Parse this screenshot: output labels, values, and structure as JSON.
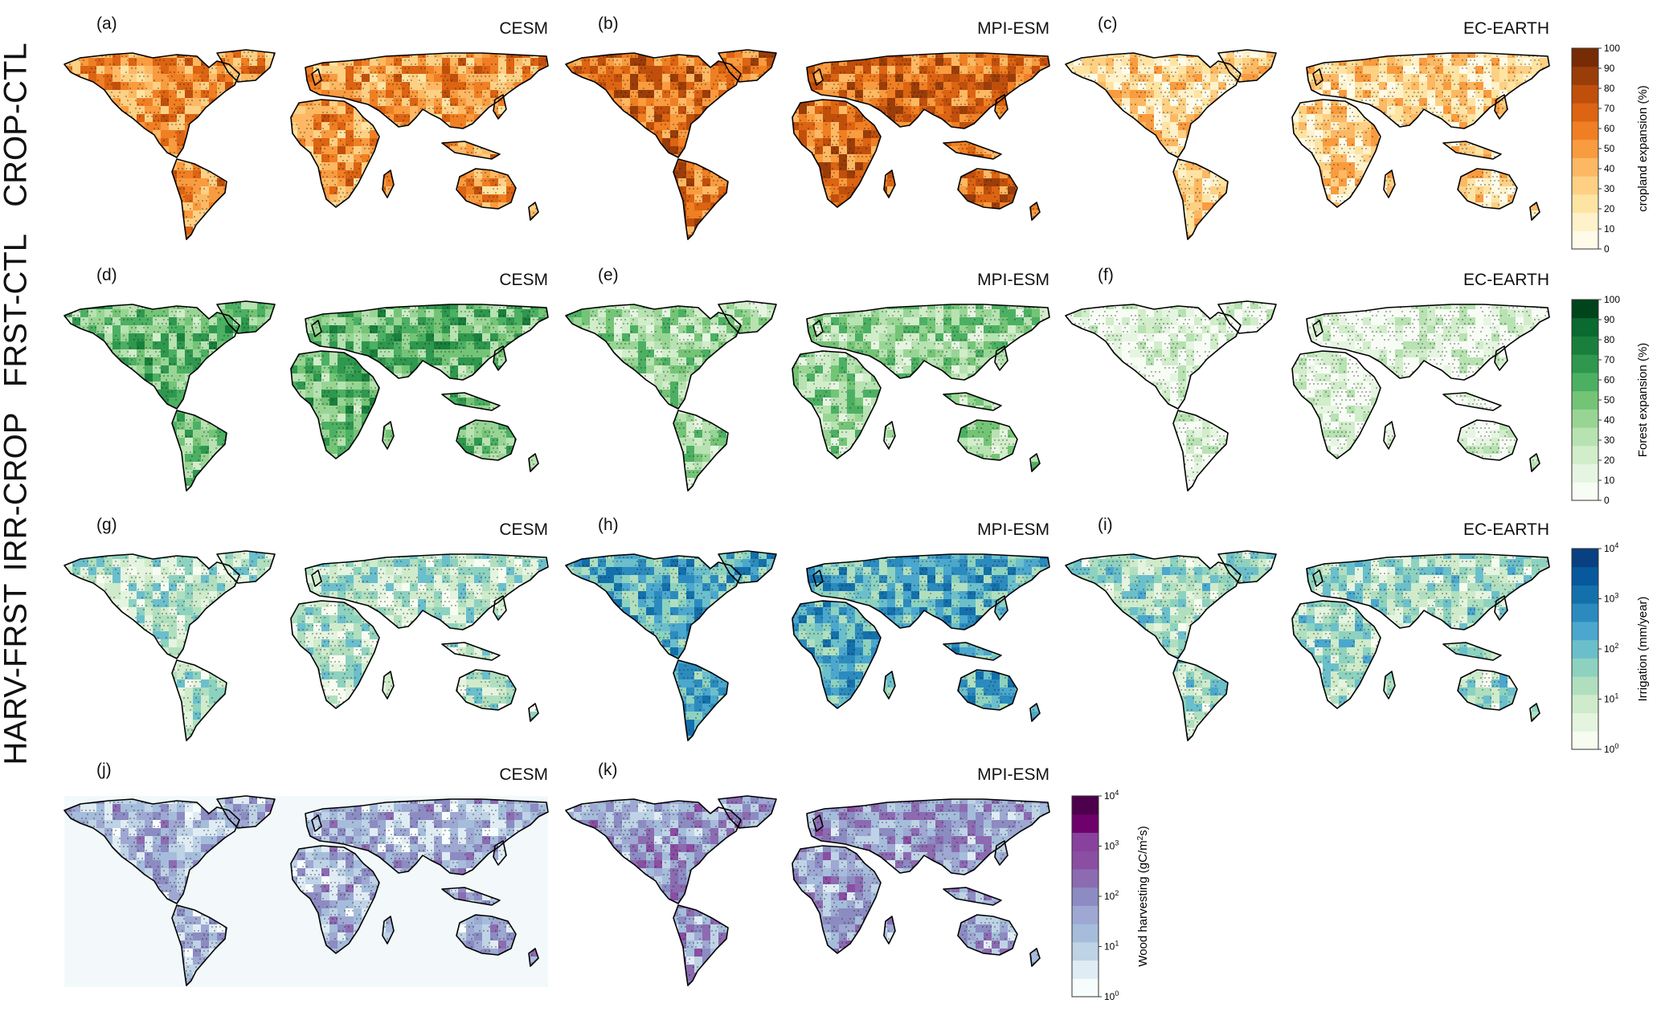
{
  "rows": [
    {
      "label": "CROP-CTL"
    },
    {
      "label": "FRST-CTL"
    },
    {
      "label": "IRR-CROP"
    },
    {
      "label": "HARV-FRST"
    }
  ],
  "panels": [
    {
      "letter": "(a)",
      "model": "CESM",
      "scheme": "orange",
      "bg": "#ffffff"
    },
    {
      "letter": "(b)",
      "model": "MPI-ESM",
      "scheme": "orange",
      "bg": "#ffffff"
    },
    {
      "letter": "(c)",
      "model": "EC-EARTH",
      "scheme": "orange",
      "bg": "#ffffff"
    },
    {
      "letter": "(d)",
      "model": "CESM",
      "scheme": "green",
      "bg": "#ffffff"
    },
    {
      "letter": "(e)",
      "model": "MPI-ESM",
      "scheme": "green",
      "bg": "#ffffff"
    },
    {
      "letter": "(f)",
      "model": "EC-EARTH",
      "scheme": "green",
      "bg": "#ffffff"
    },
    {
      "letter": "(g)",
      "model": "CESM",
      "scheme": "blue",
      "bg": "#ffffff"
    },
    {
      "letter": "(h)",
      "model": "MPI-ESM",
      "scheme": "blue",
      "bg": "#ffffff"
    },
    {
      "letter": "(i)",
      "model": "EC-EARTH",
      "scheme": "blue",
      "bg": "#ffffff"
    },
    {
      "letter": "(j)",
      "model": "CESM",
      "scheme": "purple",
      "bg": "#f3f9fb"
    },
    {
      "letter": "(k)",
      "model": "MPI-ESM",
      "scheme": "purple",
      "bg": "#ffffff"
    }
  ],
  "colorbars": [
    {
      "label": "cropland expansion (%)",
      "ticks": [
        "0",
        "10",
        "20",
        "30",
        "40",
        "50",
        "60",
        "70",
        "80",
        "90",
        "100"
      ],
      "colors": [
        "#fffbe8",
        "#fff1c9",
        "#fee4a3",
        "#fdd084",
        "#fdb863",
        "#f99b3f",
        "#f07f23",
        "#dc6412",
        "#c04f0c",
        "#9a3d09",
        "#772c06"
      ]
    },
    {
      "label": "Forest expansion (%)",
      "ticks": [
        "0",
        "10",
        "20",
        "30",
        "40",
        "50",
        "60",
        "70",
        "80",
        "90",
        "100"
      ],
      "colors": [
        "#f7fcf5",
        "#e6f5e1",
        "#d1edca",
        "#b7e2b1",
        "#98d594",
        "#74c476",
        "#4cb063",
        "#2f974e",
        "#1a7f3c",
        "#0a6a2f",
        "#00441b"
      ]
    },
    {
      "label": "Irrigation (mm/year)",
      "ticks": [
        "10^0",
        "10^1",
        "10^2",
        "10^3",
        "10^4"
      ],
      "colors": [
        "#f7fcf0",
        "#e4f4df",
        "#cfebcb",
        "#b0dfbf",
        "#8dd2bf",
        "#6bbfcb",
        "#4ba7cd",
        "#2c8bbe",
        "#1470ab",
        "#08589e",
        "#084081"
      ]
    },
    {
      "label": "Wood harvesting (gC/m^2s)",
      "ticks": [
        "10^0",
        "10^1",
        "10^2",
        "10^3",
        "10^4"
      ],
      "colors": [
        "#f7fcfd",
        "#e0ecf4",
        "#bfd3e6",
        "#a5bddb",
        "#9ea8d2",
        "#8c8bc2",
        "#8c6bb1",
        "#8a4ea2",
        "#88419d",
        "#6e016b",
        "#4d004b"
      ]
    }
  ]
}
